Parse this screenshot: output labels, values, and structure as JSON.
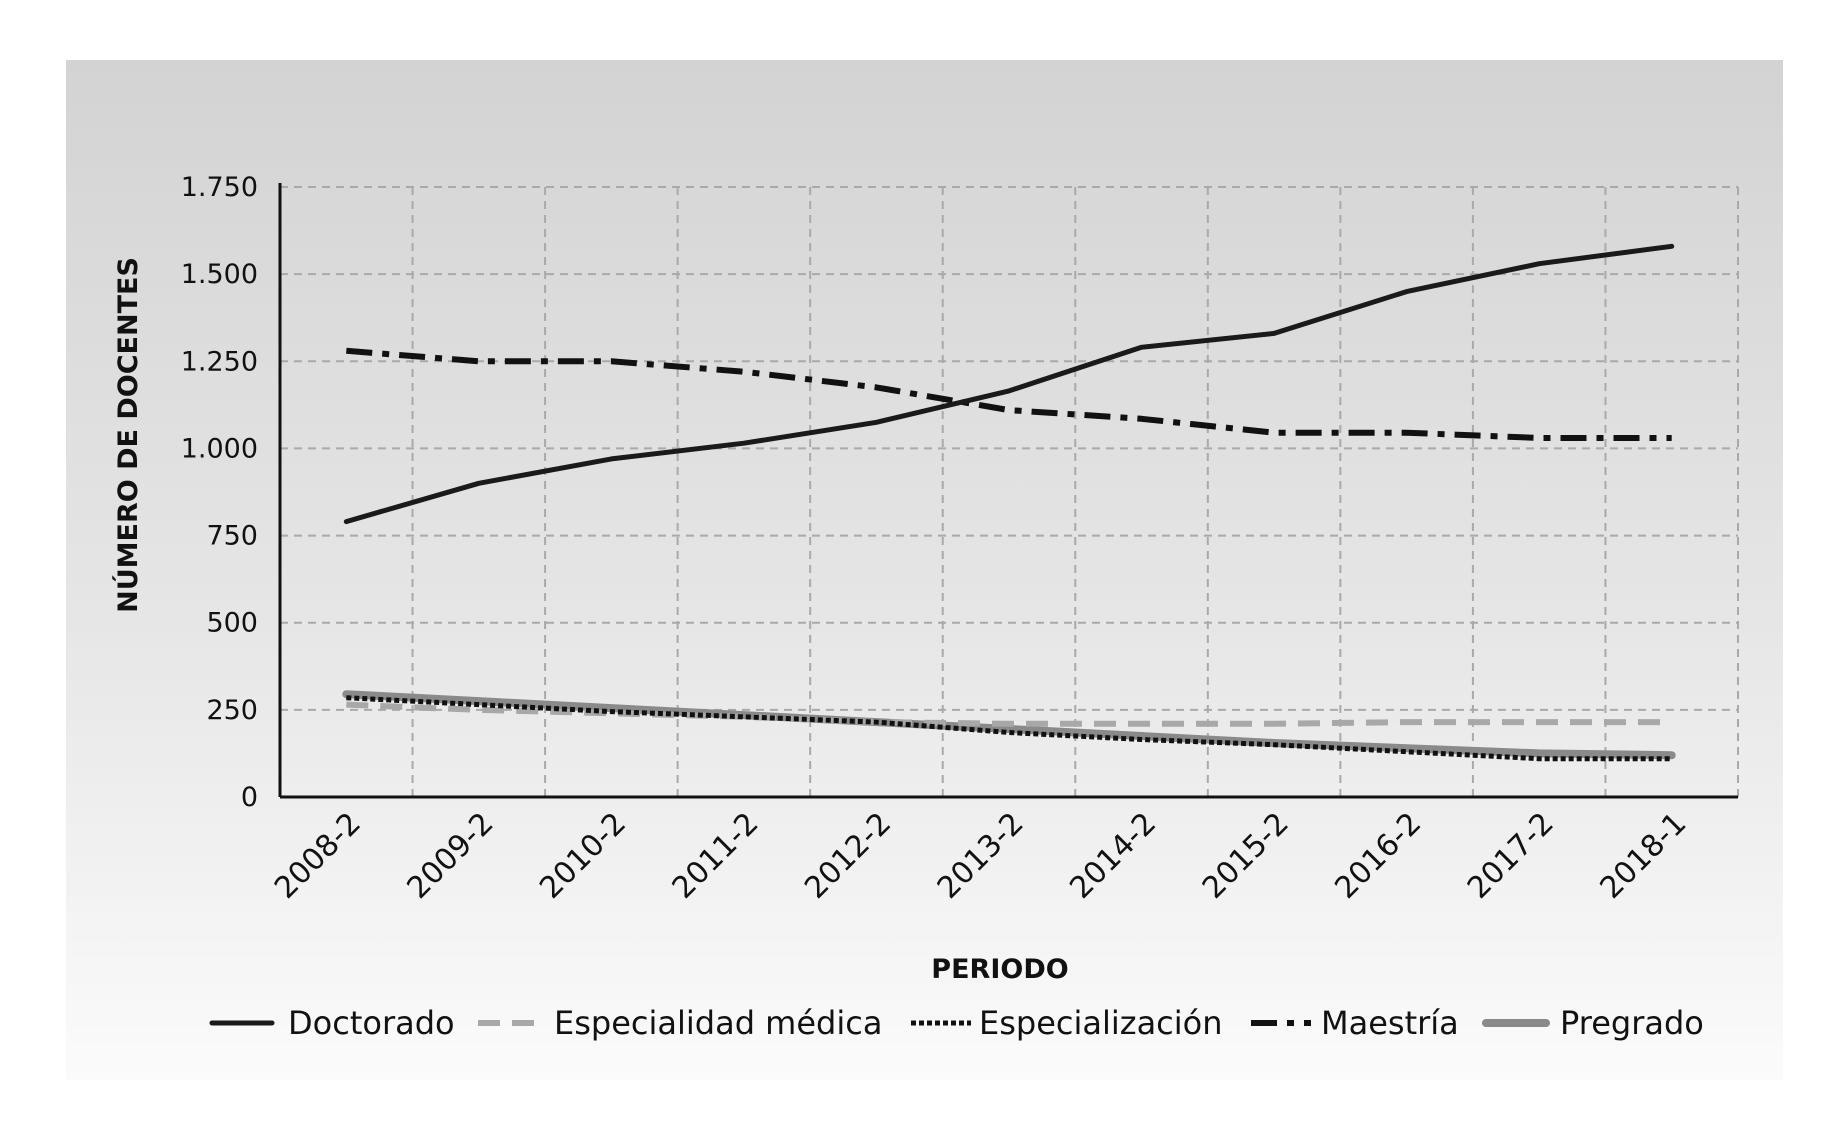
{
  "chart_data": {
    "type": "line",
    "title": "",
    "xlabel": "PERIODO",
    "ylabel": "NÚMERO DE DOCENTES",
    "categories": [
      "2008-2",
      "2009-2",
      "2010-2",
      "2011-2",
      "2012-2",
      "2013-2",
      "2014-2",
      "2015-2",
      "2016-2",
      "2017-2",
      "2018-1"
    ],
    "ylim": [
      0,
      1750
    ],
    "yticks": [
      0,
      250,
      500,
      750,
      1000,
      1250,
      1500,
      1750
    ],
    "ytick_labels": [
      "0",
      "250",
      "500",
      "750",
      "1.000",
      "1.250",
      "1.500",
      "1.750"
    ],
    "grid": true,
    "legend_position": "bottom",
    "series": [
      {
        "name": "Doctorado",
        "color": "#1a1a1a",
        "dash": "solid",
        "values": [
          790,
          900,
          970,
          1015,
          1075,
          1165,
          1290,
          1330,
          1450,
          1530,
          1580
        ]
      },
      {
        "name": "Especialidad médica",
        "color": "#a8a8a8",
        "dash": "dashed",
        "values": [
          265,
          250,
          240,
          230,
          215,
          210,
          210,
          210,
          215,
          215,
          215
        ]
      },
      {
        "name": "Especialización",
        "color": "#111111",
        "dash": "dotted",
        "values": [
          285,
          265,
          245,
          230,
          215,
          185,
          165,
          150,
          130,
          110,
          110
        ]
      },
      {
        "name": "Maestría",
        "color": "#111111",
        "dash": "dashdot",
        "values": [
          1280,
          1250,
          1250,
          1220,
          1175,
          1110,
          1085,
          1045,
          1045,
          1030,
          1030
        ]
      },
      {
        "name": "Pregrado",
        "color": "#8a8a8a",
        "dash": "solid",
        "values": [
          295,
          275,
          255,
          235,
          215,
          195,
          175,
          155,
          140,
          125,
          120
        ]
      }
    ]
  }
}
